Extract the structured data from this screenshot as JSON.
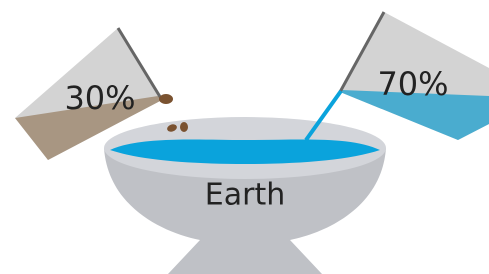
{
  "left_beaker": {
    "label": "30%"
  },
  "right_beaker": {
    "label": "70%"
  },
  "bowl": {
    "label": "Earth"
  }
}
